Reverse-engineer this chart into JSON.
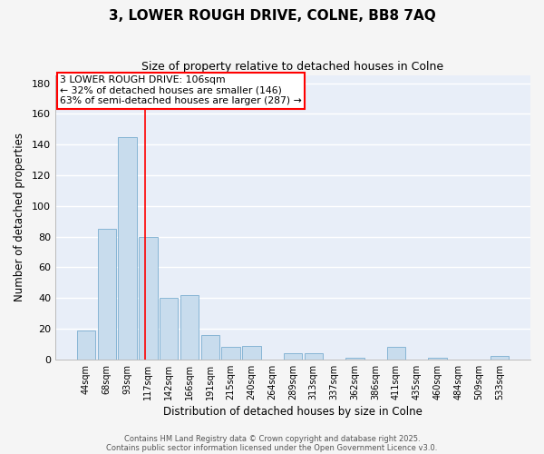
{
  "title": "3, LOWER ROUGH DRIVE, COLNE, BB8 7AQ",
  "subtitle": "Size of property relative to detached houses in Colne",
  "xlabel": "Distribution of detached houses by size in Colne",
  "ylabel": "Number of detached properties",
  "bar_color": "#c8dced",
  "bar_edge_color": "#7aaed0",
  "background_color": "#e8eef8",
  "fig_color": "#f5f5f5",
  "grid_color": "#ffffff",
  "categories": [
    "44sqm",
    "68sqm",
    "93sqm",
    "117sqm",
    "142sqm",
    "166sqm",
    "191sqm",
    "215sqm",
    "240sqm",
    "264sqm",
    "289sqm",
    "313sqm",
    "337sqm",
    "362sqm",
    "386sqm",
    "411sqm",
    "435sqm",
    "460sqm",
    "484sqm",
    "509sqm",
    "533sqm"
  ],
  "values": [
    19,
    85,
    145,
    80,
    40,
    42,
    16,
    8,
    9,
    0,
    4,
    4,
    0,
    1,
    0,
    8,
    0,
    1,
    0,
    0,
    2
  ],
  "ylim": [
    0,
    185
  ],
  "yticks": [
    0,
    20,
    40,
    60,
    80,
    100,
    120,
    140,
    160,
    180
  ],
  "red_line_x": 2.83,
  "annotation_text": "3 LOWER ROUGH DRIVE: 106sqm\n← 32% of detached houses are smaller (146)\n63% of semi-detached houses are larger (287) →",
  "footer_line1": "Contains HM Land Registry data © Crown copyright and database right 2025.",
  "footer_line2": "Contains public sector information licensed under the Open Government Licence v3.0."
}
